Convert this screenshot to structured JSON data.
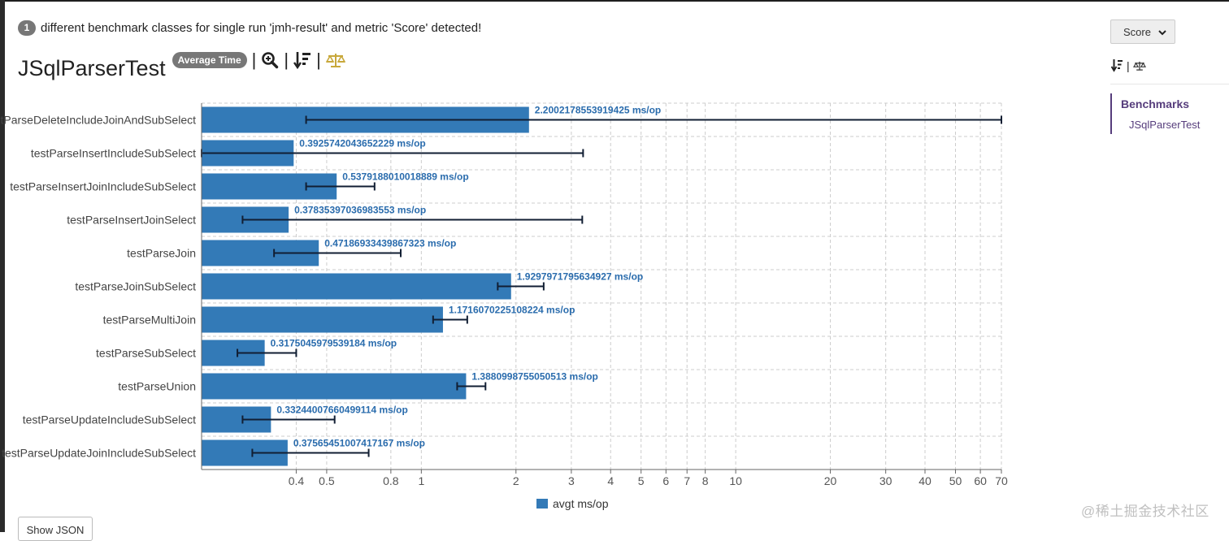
{
  "header": {
    "info_count": "1",
    "info_text": "different benchmark classes for single run 'jmh-result' and metric 'Score' detected!",
    "title": "JSqlParserTest",
    "mode_badge": "Average Time",
    "divider": "|"
  },
  "sidebar": {
    "metric_selected": "Score",
    "divider": "|",
    "nav_heading": "Benchmarks",
    "nav_items": [
      "JSqlParserTest"
    ]
  },
  "show_json_label": "Show JSON",
  "watermark": "@稀土掘金技术社区",
  "icons": {
    "zoom": "zoom-in-icon",
    "sort": "sort-descending-icon",
    "compare": "balance-scale-icon",
    "select_arrow": "chevron-down-icon"
  },
  "colors": {
    "bar": "#337ab7",
    "label": "#2a6cad",
    "error_bar": "#111e33",
    "grid": "#cccccc",
    "badge": "#777777",
    "nav": "#563d7c",
    "compare_icon": "#c8a83b"
  },
  "chart_data": {
    "type": "bar",
    "orientation": "horizontal",
    "x_scale": "log",
    "xlim": [
      0.2,
      70
    ],
    "x_ticks": [
      0.4,
      0.5,
      0.8,
      1,
      2,
      3,
      4,
      5,
      6,
      7,
      8,
      10,
      20,
      30,
      40,
      50,
      60,
      70
    ],
    "grid": true,
    "legend": {
      "position": "bottom-center",
      "entries": [
        "avgt ms/op"
      ]
    },
    "unit": "ms/op",
    "categories": [
      "testParseDeleteIncludeJoinAndSubSelect",
      "testParseInsertIncludeSubSelect",
      "testParseInsertJoinIncludeSubSelect",
      "testParseInsertJoinSelect",
      "testParseJoin",
      "testParseJoinSubSelect",
      "testParseMultiJoin",
      "testParseSubSelect",
      "testParseUnion",
      "testParseUpdateIncludeSubSelect",
      "testParseUpdateJoinIncludeSubSelect"
    ],
    "series": [
      {
        "name": "avgt ms/op",
        "values": [
          2.2002178553919425,
          0.3925742043652229,
          0.5379188010018889,
          0.37835397036983553,
          0.47186933439867323,
          1.9297971795634927,
          1.1716070225108224,
          0.3175045979539184,
          1.3880998755050513,
          0.33244007660499114,
          0.37565451007417167
        ],
        "value_labels": [
          "2.2002178553919425 ms/op",
          "0.3925742043652229 ms/op",
          "0.5379188010018889 ms/op",
          "0.37835397036983553 ms/op",
          "0.47186933439867323 ms/op",
          "1.9297971795634927 ms/op",
          "1.1716070225108224 ms/op",
          "0.3175045979539184 ms/op",
          "1.3880998755050513 ms/op",
          "0.33244007660499114 ms/op",
          "0.37565451007417167 ms/op"
        ],
        "error_low": [
          0.43,
          0.2,
          0.43,
          0.27,
          0.34,
          1.75,
          1.09,
          0.26,
          1.3,
          0.27,
          0.29
        ],
        "error_high": [
          70,
          3.27,
          0.71,
          3.25,
          0.86,
          2.45,
          1.4,
          0.4,
          1.6,
          0.53,
          0.68
        ]
      }
    ]
  }
}
